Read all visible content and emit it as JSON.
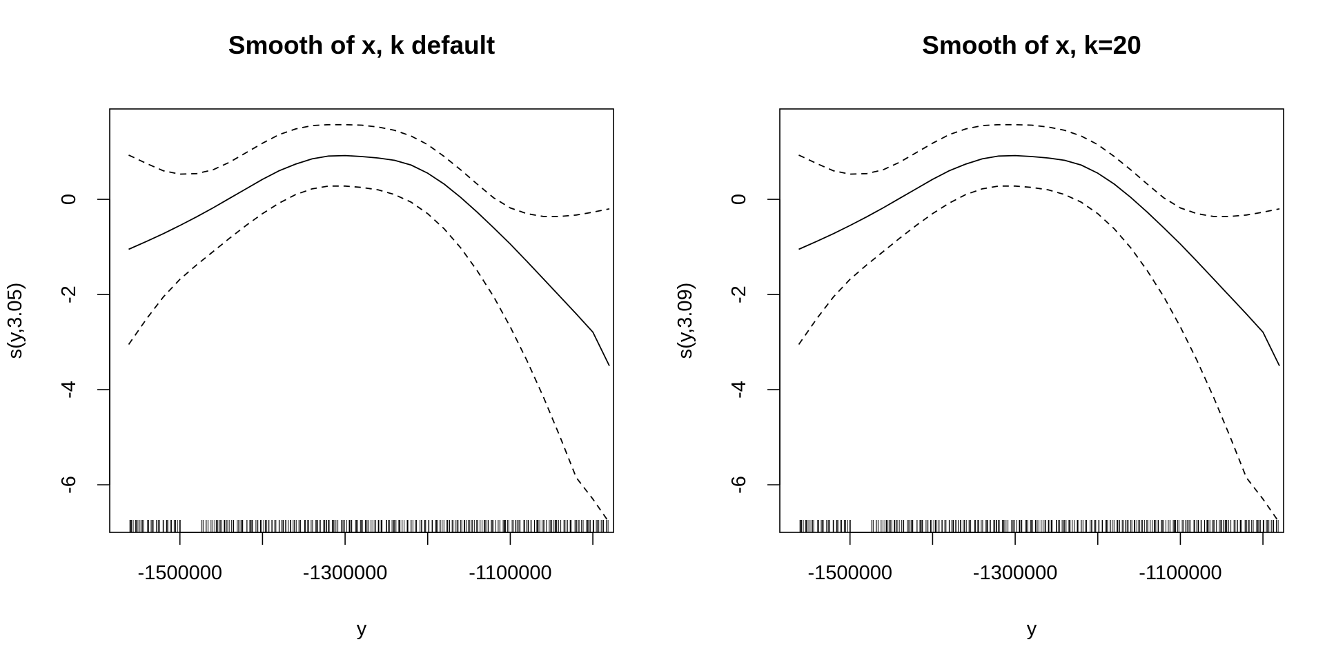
{
  "chart_data": [
    {
      "type": "line",
      "title": "Smooth of x, k default",
      "xlabel": "y",
      "ylabel": "s(y,3.05)",
      "xlim": [
        -1585000,
        -975000
      ],
      "ylim": [
        -7.0,
        1.9
      ],
      "x_ticks": [
        -1500000,
        -1400000,
        -1300000,
        -1200000,
        -1100000,
        -1000000
      ],
      "x_tick_labels": [
        "-1500000",
        "",
        "-1300000",
        "",
        "-1100000",
        ""
      ],
      "y_ticks": [
        -6,
        -4,
        -2,
        0
      ],
      "y_tick_labels": [
        "-6",
        "-4",
        "-2",
        "0"
      ],
      "grid": false,
      "series": [
        {
          "role": "fit",
          "style": "solid",
          "x": [
            -1562000,
            -1540000,
            -1520000,
            -1500000,
            -1480000,
            -1460000,
            -1440000,
            -1420000,
            -1400000,
            -1380000,
            -1360000,
            -1340000,
            -1320000,
            -1300000,
            -1280000,
            -1260000,
            -1240000,
            -1220000,
            -1200000,
            -1180000,
            -1160000,
            -1140000,
            -1120000,
            -1100000,
            -1080000,
            -1060000,
            -1040000,
            -1020000,
            -1000000,
            -980000
          ],
          "y": [
            -1.05,
            -0.88,
            -0.72,
            -0.55,
            -0.37,
            -0.18,
            0.02,
            0.22,
            0.42,
            0.6,
            0.74,
            0.85,
            0.91,
            0.92,
            0.9,
            0.87,
            0.82,
            0.72,
            0.55,
            0.32,
            0.04,
            -0.27,
            -0.6,
            -0.94,
            -1.3,
            -1.67,
            -2.04,
            -2.41,
            -2.79,
            -3.5
          ]
        },
        {
          "role": "upper",
          "style": "dashed",
          "x": [
            -1562000,
            -1540000,
            -1520000,
            -1500000,
            -1480000,
            -1460000,
            -1440000,
            -1420000,
            -1400000,
            -1380000,
            -1360000,
            -1340000,
            -1320000,
            -1300000,
            -1280000,
            -1260000,
            -1240000,
            -1220000,
            -1200000,
            -1180000,
            -1160000,
            -1140000,
            -1120000,
            -1100000,
            -1080000,
            -1060000,
            -1040000,
            -1020000,
            -1000000,
            -980000
          ],
          "y": [
            0.93,
            0.75,
            0.6,
            0.53,
            0.54,
            0.62,
            0.78,
            0.98,
            1.18,
            1.36,
            1.48,
            1.55,
            1.57,
            1.57,
            1.56,
            1.52,
            1.45,
            1.33,
            1.15,
            0.9,
            0.62,
            0.32,
            0.03,
            -0.18,
            -0.3,
            -0.36,
            -0.36,
            -0.33,
            -0.27,
            -0.2
          ]
        },
        {
          "role": "lower",
          "style": "dashed",
          "x": [
            -1562000,
            -1540000,
            -1520000,
            -1500000,
            -1480000,
            -1460000,
            -1440000,
            -1420000,
            -1400000,
            -1380000,
            -1360000,
            -1340000,
            -1320000,
            -1300000,
            -1280000,
            -1260000,
            -1240000,
            -1220000,
            -1200000,
            -1180000,
            -1160000,
            -1140000,
            -1120000,
            -1100000,
            -1080000,
            -1060000,
            -1040000,
            -1020000,
            -1000000,
            -980000
          ],
          "y": [
            -3.05,
            -2.5,
            -2.05,
            -1.68,
            -1.38,
            -1.1,
            -0.82,
            -0.55,
            -0.3,
            -0.08,
            0.1,
            0.22,
            0.28,
            0.28,
            0.25,
            0.2,
            0.1,
            -0.06,
            -0.3,
            -0.62,
            -1.02,
            -1.5,
            -2.05,
            -2.68,
            -3.38,
            -4.15,
            -4.98,
            -5.85,
            -6.3,
            -6.8
          ]
        }
      ]
    },
    {
      "type": "line",
      "title": "Smooth of x, k=20",
      "xlabel": "y",
      "ylabel": "s(y,3.09)",
      "xlim": [
        -1585000,
        -975000
      ],
      "ylim": [
        -7.0,
        1.9
      ],
      "x_ticks": [
        -1500000,
        -1400000,
        -1300000,
        -1200000,
        -1100000,
        -1000000
      ],
      "x_tick_labels": [
        "-1500000",
        "",
        "-1300000",
        "",
        "-1100000",
        ""
      ],
      "y_ticks": [
        -6,
        -4,
        -2,
        0
      ],
      "y_tick_labels": [
        "-6",
        "-4",
        "-2",
        "0"
      ],
      "grid": false,
      "series": [
        {
          "role": "fit",
          "style": "solid",
          "x": [
            -1562000,
            -1540000,
            -1520000,
            -1500000,
            -1480000,
            -1460000,
            -1440000,
            -1420000,
            -1400000,
            -1380000,
            -1360000,
            -1340000,
            -1320000,
            -1300000,
            -1280000,
            -1260000,
            -1240000,
            -1220000,
            -1200000,
            -1180000,
            -1160000,
            -1140000,
            -1120000,
            -1100000,
            -1080000,
            -1060000,
            -1040000,
            -1020000,
            -1000000,
            -980000
          ],
          "y": [
            -1.05,
            -0.88,
            -0.72,
            -0.55,
            -0.37,
            -0.18,
            0.02,
            0.22,
            0.42,
            0.6,
            0.74,
            0.85,
            0.91,
            0.92,
            0.9,
            0.87,
            0.82,
            0.72,
            0.55,
            0.32,
            0.04,
            -0.27,
            -0.6,
            -0.94,
            -1.3,
            -1.67,
            -2.04,
            -2.41,
            -2.79,
            -3.5
          ]
        },
        {
          "role": "upper",
          "style": "dashed",
          "x": [
            -1562000,
            -1540000,
            -1520000,
            -1500000,
            -1480000,
            -1460000,
            -1440000,
            -1420000,
            -1400000,
            -1380000,
            -1360000,
            -1340000,
            -1320000,
            -1300000,
            -1280000,
            -1260000,
            -1240000,
            -1220000,
            -1200000,
            -1180000,
            -1160000,
            -1140000,
            -1120000,
            -1100000,
            -1080000,
            -1060000,
            -1040000,
            -1020000,
            -1000000,
            -980000
          ],
          "y": [
            0.93,
            0.75,
            0.6,
            0.53,
            0.54,
            0.62,
            0.78,
            0.98,
            1.18,
            1.36,
            1.48,
            1.55,
            1.57,
            1.57,
            1.56,
            1.52,
            1.45,
            1.33,
            1.15,
            0.9,
            0.62,
            0.32,
            0.03,
            -0.18,
            -0.3,
            -0.36,
            -0.36,
            -0.33,
            -0.27,
            -0.2
          ]
        },
        {
          "role": "lower",
          "style": "dashed",
          "x": [
            -1562000,
            -1540000,
            -1520000,
            -1500000,
            -1480000,
            -1460000,
            -1440000,
            -1420000,
            -1400000,
            -1380000,
            -1360000,
            -1340000,
            -1320000,
            -1300000,
            -1280000,
            -1260000,
            -1240000,
            -1220000,
            -1200000,
            -1180000,
            -1160000,
            -1140000,
            -1120000,
            -1100000,
            -1080000,
            -1060000,
            -1040000,
            -1020000,
            -1000000,
            -980000
          ],
          "y": [
            -3.05,
            -2.5,
            -2.05,
            -1.68,
            -1.38,
            -1.1,
            -0.82,
            -0.55,
            -0.3,
            -0.08,
            0.1,
            0.22,
            0.28,
            0.28,
            0.25,
            0.2,
            0.1,
            -0.06,
            -0.3,
            -0.62,
            -1.02,
            -1.5,
            -2.05,
            -2.68,
            -3.38,
            -4.15,
            -4.98,
            -5.85,
            -6.3,
            -6.8
          ]
        }
      ]
    }
  ]
}
